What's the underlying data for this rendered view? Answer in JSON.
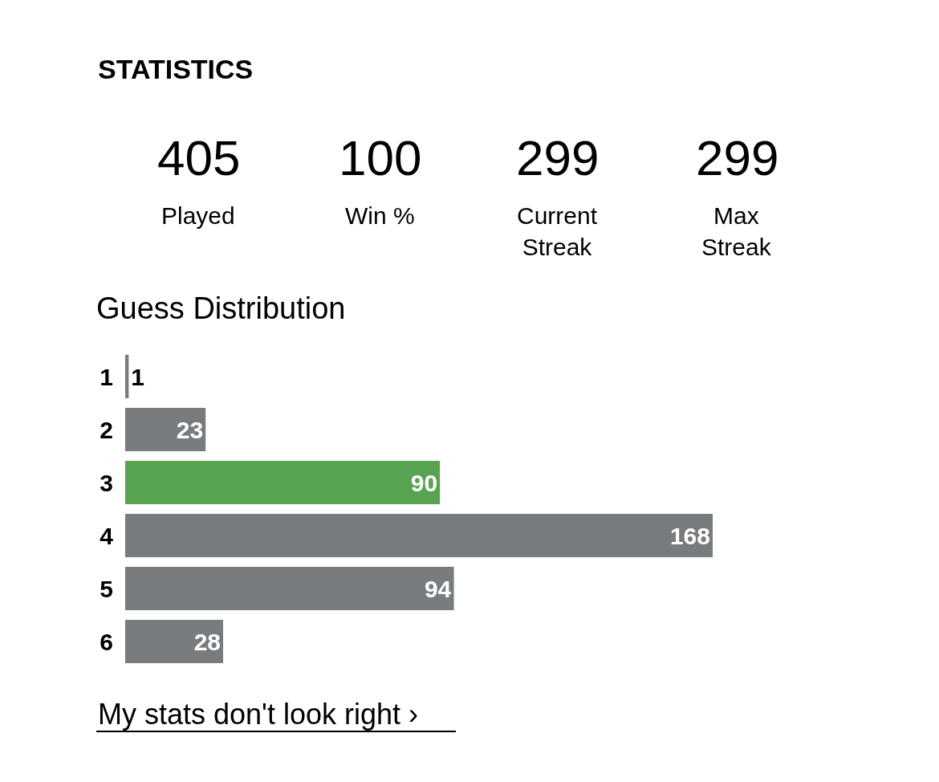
{
  "chart_data": {
    "type": "bar",
    "orientation": "horizontal",
    "title": "Guess Distribution",
    "categories": [
      "1",
      "2",
      "3",
      "4",
      "5",
      "6"
    ],
    "values": [
      1,
      23,
      90,
      168,
      94,
      28
    ],
    "colors": [
      "#787c7e",
      "#787c7e",
      "#58a351",
      "#787c7e",
      "#787c7e",
      "#787c7e"
    ],
    "data_labels": true,
    "tick_labels": "y",
    "annotations": [
      "STATISTICS",
      "405",
      "Played",
      "100",
      "Win %",
      "299",
      "Current\nStreak",
      "299",
      "Max\nStreak",
      "My stats don't look right ›"
    ]
  }
}
